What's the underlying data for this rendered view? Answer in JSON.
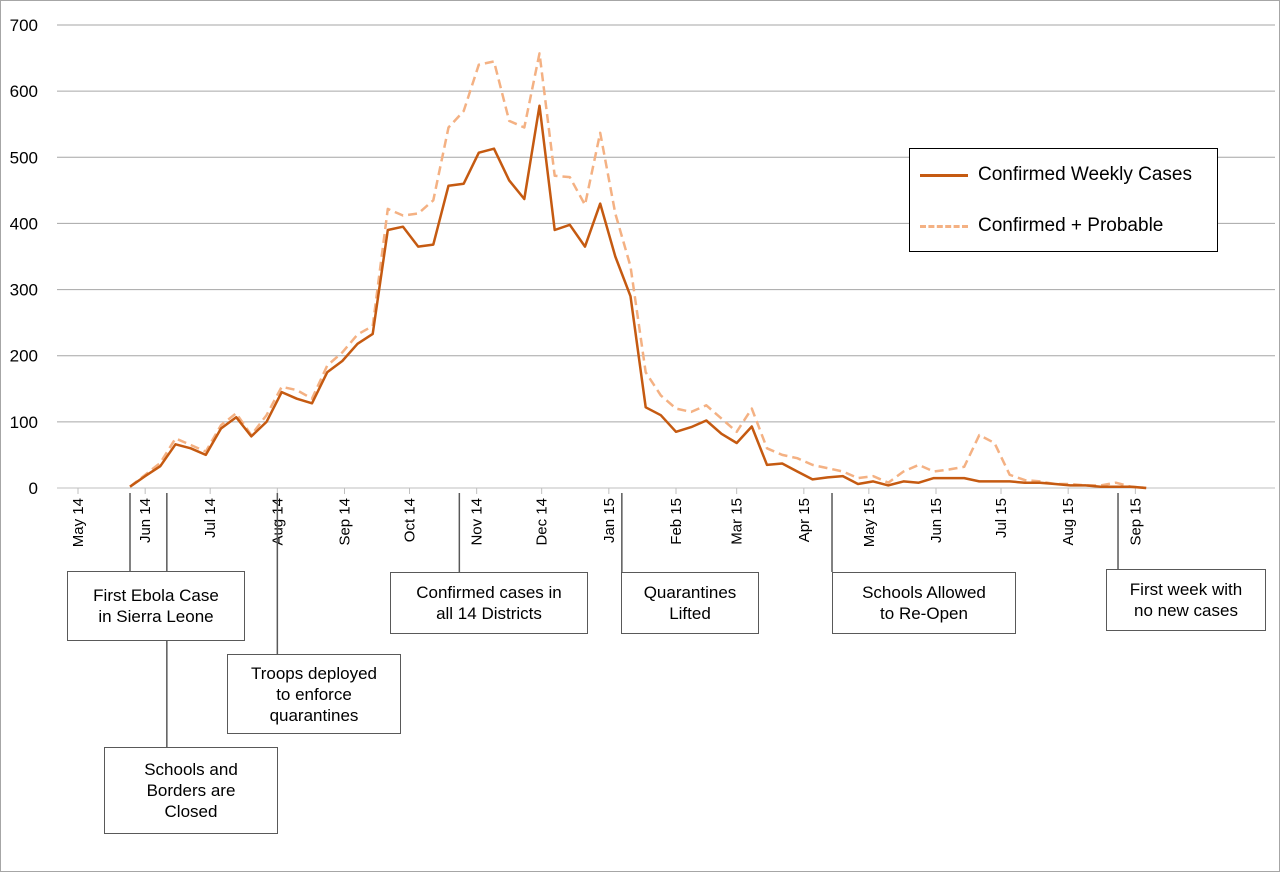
{
  "chart_data": {
    "type": "line",
    "ylim": [
      0,
      700
    ],
    "yticks": [
      0,
      100,
      200,
      300,
      400,
      500,
      600,
      700
    ],
    "x_tick_labels": [
      "May 14",
      "Jun 14",
      "Jul 14",
      "Aug 14",
      "Sep 14",
      "Oct 14",
      "Nov 14",
      "Dec 14",
      "Jan 15",
      "Feb 15",
      "Mar 15",
      "Apr 15",
      "May 15",
      "Jun 15",
      "Jul 15",
      "Aug 15",
      "Sep 15"
    ],
    "x_start": "2014-05-01",
    "week_dates": [
      "2014-05-25",
      "2014-06-01",
      "2014-06-08",
      "2014-06-15",
      "2014-06-22",
      "2014-06-29",
      "2014-07-06",
      "2014-07-13",
      "2014-07-20",
      "2014-07-27",
      "2014-08-03",
      "2014-08-10",
      "2014-08-17",
      "2014-08-24",
      "2014-08-31",
      "2014-09-07",
      "2014-09-14",
      "2014-09-21",
      "2014-09-28",
      "2014-10-05",
      "2014-10-12",
      "2014-10-19",
      "2014-10-26",
      "2014-11-02",
      "2014-11-09",
      "2014-11-16",
      "2014-11-23",
      "2014-11-30",
      "2014-12-07",
      "2014-12-14",
      "2014-12-21",
      "2014-12-28",
      "2015-01-04",
      "2015-01-11",
      "2015-01-18",
      "2015-01-25",
      "2015-02-01",
      "2015-02-08",
      "2015-02-15",
      "2015-02-22",
      "2015-03-01",
      "2015-03-08",
      "2015-03-15",
      "2015-03-22",
      "2015-03-29",
      "2015-04-05",
      "2015-04-12",
      "2015-04-19",
      "2015-04-26",
      "2015-05-03",
      "2015-05-10",
      "2015-05-17",
      "2015-05-24",
      "2015-05-31",
      "2015-06-07",
      "2015-06-14",
      "2015-06-21",
      "2015-06-28",
      "2015-07-05",
      "2015-07-12",
      "2015-07-19",
      "2015-07-26",
      "2015-08-02",
      "2015-08-09",
      "2015-08-16",
      "2015-08-23",
      "2015-08-30",
      "2015-09-06"
    ],
    "series": [
      {
        "name": "Confirmed Weekly Cases",
        "color": "#c55a11",
        "dash": false,
        "values": [
          2,
          18,
          33,
          66,
          60,
          50,
          90,
          107,
          78,
          100,
          145,
          135,
          128,
          175,
          192,
          218,
          233,
          390,
          395,
          365,
          368,
          457,
          460,
          507,
          513,
          465,
          437,
          578,
          390,
          398,
          365,
          430,
          350,
          290,
          122,
          110,
          85,
          92,
          102,
          82,
          68,
          93,
          35,
          37,
          25,
          13,
          16,
          18,
          6,
          10,
          4,
          10,
          8,
          15,
          15,
          15,
          10,
          10,
          10,
          8,
          8,
          6,
          4,
          4,
          2,
          2,
          2,
          0
        ]
      },
      {
        "name": "Confirmed + Probable",
        "color": "#f4b183",
        "dash": true,
        "values": [
          2,
          20,
          38,
          75,
          65,
          55,
          95,
          113,
          80,
          110,
          153,
          148,
          135,
          185,
          205,
          232,
          245,
          422,
          412,
          415,
          435,
          545,
          570,
          640,
          645,
          555,
          545,
          657,
          472,
          470,
          428,
          537,
          415,
          335,
          175,
          140,
          120,
          115,
          125,
          105,
          85,
          120,
          60,
          50,
          45,
          35,
          30,
          25,
          15,
          18,
          8,
          25,
          35,
          25,
          28,
          32,
          80,
          68,
          20,
          12,
          10,
          6,
          6,
          4,
          4,
          8,
          2,
          0
        ]
      }
    ],
    "annotations": [
      {
        "text_lines": [
          "First Ebola Case",
          "in Sierra Leone"
        ],
        "date": "2014-05-25"
      },
      {
        "text_lines": [
          "Schools and",
          "Borders are",
          "Closed"
        ],
        "date": "2014-06-11"
      },
      {
        "text_lines": [
          "Troops deployed",
          "to enforce",
          "quarantines"
        ],
        "date": "2014-08-01"
      },
      {
        "text_lines": [
          "Confirmed cases in",
          "all 14 Districts"
        ],
        "date": "2014-10-24"
      },
      {
        "text_lines": [
          "Quarantines",
          "Lifted"
        ],
        "date": "2015-01-07"
      },
      {
        "text_lines": [
          "Schools Allowed",
          "to Re-Open"
        ],
        "date": "2015-04-14"
      },
      {
        "text_lines": [
          "First week with",
          "no new cases"
        ],
        "date": "2015-08-24"
      }
    ]
  }
}
